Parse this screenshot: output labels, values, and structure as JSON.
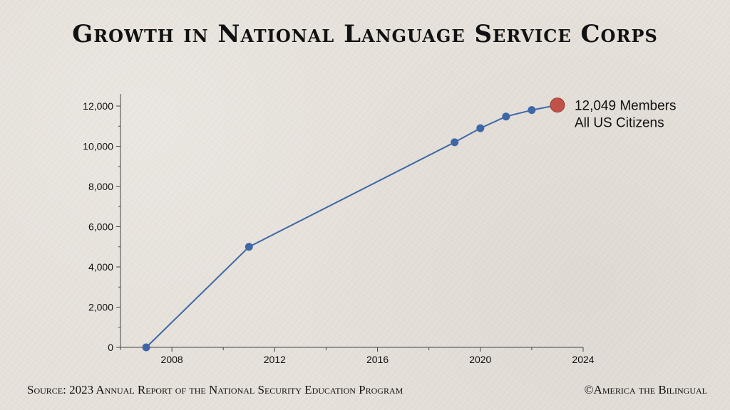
{
  "title": "Growth in National Language Service Corps",
  "footer": {
    "source": "Source: 2023 Annual Report of the National Security Education Program",
    "credit": "©America the Bilingual"
  },
  "colors": {
    "line": "#3e67a6",
    "highlight": "#c0524a",
    "axis": "#444444"
  },
  "chart_data": {
    "type": "line",
    "title": "Growth in National Language Service Corps",
    "xlabel": "",
    "ylabel": "",
    "xlim": [
      2006,
      2024
    ],
    "ylim": [
      0,
      12600
    ],
    "x_ticks": [
      2008,
      2012,
      2016,
      2020,
      2024
    ],
    "y_ticks": [
      0,
      2000,
      4000,
      6000,
      8000,
      10000,
      12000
    ],
    "x_tick_labels": [
      "2008",
      "2012",
      "2016",
      "2020",
      "2024"
    ],
    "y_tick_labels": [
      "0",
      "2,000",
      "4,000",
      "6,000",
      "8,000",
      "10,000",
      "12,000"
    ],
    "grid": false,
    "series": [
      {
        "x": [
          2007,
          2011,
          2019,
          2020,
          2021,
          2022,
          2023
        ],
        "values": [
          0,
          5000,
          10200,
          10900,
          11480,
          11800,
          12049
        ]
      }
    ],
    "annotation": {
      "x": 2023,
      "y": 12049,
      "lines": [
        "12,049 Members",
        "All US Citizens"
      ]
    }
  }
}
